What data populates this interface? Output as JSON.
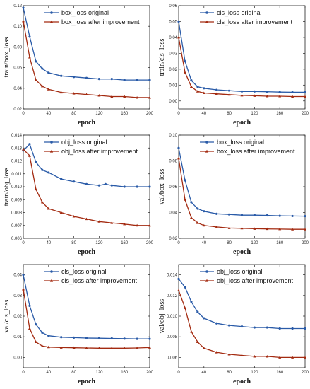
{
  "colors": {
    "original": "#2a5ba8",
    "improved": "#a32a10"
  },
  "chart_data": [
    {
      "type": "line",
      "ylabel": "train/box_loss",
      "xlabel": "epoch",
      "xlim": [
        0,
        200
      ],
      "ylim": [
        0.02,
        0.12
      ],
      "xticks": [
        "0",
        "40",
        "80",
        "120",
        "160",
        "200"
      ],
      "yticks": [
        "0.02",
        "0.04",
        "0.06",
        "0.08",
        "0.10",
        "0.12"
      ],
      "series": [
        {
          "name": "box_loss original",
          "key": "original",
          "x": [
            0,
            10,
            20,
            30,
            40,
            60,
            80,
            100,
            120,
            140,
            160,
            180,
            200
          ],
          "y": [
            0.118,
            0.09,
            0.066,
            0.059,
            0.055,
            0.052,
            0.051,
            0.05,
            0.049,
            0.049,
            0.048,
            0.048,
            0.048
          ]
        },
        {
          "name": "box_loss after improvement",
          "key": "improved",
          "x": [
            0,
            10,
            20,
            30,
            40,
            60,
            80,
            100,
            120,
            140,
            160,
            180,
            200
          ],
          "y": [
            0.105,
            0.07,
            0.048,
            0.042,
            0.039,
            0.036,
            0.035,
            0.034,
            0.033,
            0.032,
            0.032,
            0.031,
            0.031
          ]
        }
      ]
    },
    {
      "type": "line",
      "ylabel": "train/cls_loss",
      "xlabel": "epoch",
      "xlim": [
        0,
        200
      ],
      "ylim": [
        -0.005,
        0.06
      ],
      "xticks": [
        "0",
        "40",
        "80",
        "120",
        "160",
        "200"
      ],
      "yticks": [
        "0.00",
        "0.01",
        "0.02",
        "0.03",
        "0.04",
        "0.05",
        "0.06"
      ],
      "series": [
        {
          "name": "cls_loss original",
          "key": "original",
          "x": [
            0,
            10,
            20,
            30,
            40,
            60,
            80,
            100,
            120,
            140,
            160,
            180,
            200
          ],
          "y": [
            0.05,
            0.025,
            0.013,
            0.009,
            0.008,
            0.007,
            0.0065,
            0.006,
            0.006,
            0.0058,
            0.0056,
            0.0055,
            0.0055
          ]
        },
        {
          "name": "cls_loss after improvement",
          "key": "improved",
          "x": [
            0,
            10,
            20,
            30,
            40,
            60,
            80,
            100,
            120,
            140,
            160,
            180,
            200
          ],
          "y": [
            0.04,
            0.018,
            0.009,
            0.006,
            0.005,
            0.0045,
            0.004,
            0.0035,
            0.0033,
            0.003,
            0.003,
            0.0028,
            0.0028
          ]
        }
      ]
    },
    {
      "type": "line",
      "ylabel": "train/obj_loss",
      "xlabel": "epoch",
      "xlim": [
        0,
        200
      ],
      "ylim": [
        0.006,
        0.014
      ],
      "xticks": [
        "0",
        "40",
        "80",
        "120",
        "160",
        "200"
      ],
      "yticks": [
        "0.006",
        "0.007",
        "0.008",
        "0.009",
        "0.010",
        "0.011",
        "0.012",
        "0.013",
        "0.014"
      ],
      "series": [
        {
          "name": "obj_loss original",
          "key": "original",
          "x": [
            0,
            10,
            20,
            30,
            40,
            60,
            80,
            100,
            120,
            130,
            140,
            160,
            180,
            200
          ],
          "y": [
            0.0128,
            0.0133,
            0.0119,
            0.0113,
            0.0111,
            0.0106,
            0.0104,
            0.0102,
            0.0101,
            0.0102,
            0.0101,
            0.01,
            0.01,
            0.01
          ]
        },
        {
          "name": "obj_loss after improvement",
          "key": "improved",
          "x": [
            0,
            10,
            20,
            30,
            40,
            60,
            80,
            100,
            120,
            140,
            160,
            180,
            200
          ],
          "y": [
            0.0129,
            0.0124,
            0.0098,
            0.0088,
            0.0083,
            0.008,
            0.0077,
            0.0075,
            0.0073,
            0.0072,
            0.0071,
            0.007,
            0.007
          ]
        }
      ]
    },
    {
      "type": "line",
      "ylabel": "val/box_loss",
      "xlabel": "epoch",
      "xlim": [
        0,
        200
      ],
      "ylim": [
        0.02,
        0.1
      ],
      "xticks": [
        "0",
        "40",
        "80",
        "120",
        "160",
        "200"
      ],
      "yticks": [
        "0.02",
        "0.04",
        "0.06",
        "0.08",
        "0.10"
      ],
      "series": [
        {
          "name": "box_loss original",
          "key": "original",
          "x": [
            0,
            10,
            20,
            30,
            40,
            60,
            80,
            100,
            120,
            140,
            160,
            180,
            200
          ],
          "y": [
            0.09,
            0.065,
            0.048,
            0.043,
            0.041,
            0.039,
            0.0385,
            0.038,
            0.038,
            0.0378,
            0.0375,
            0.0373,
            0.0372
          ]
        },
        {
          "name": "box_loss after improvement",
          "key": "improved",
          "x": [
            0,
            10,
            20,
            30,
            40,
            60,
            80,
            100,
            120,
            140,
            160,
            180,
            200
          ],
          "y": [
            0.082,
            0.05,
            0.036,
            0.032,
            0.03,
            0.0288,
            0.028,
            0.0278,
            0.0275,
            0.0273,
            0.0272,
            0.027,
            0.027
          ]
        }
      ]
    },
    {
      "type": "line",
      "ylabel": "val/cls_loss",
      "xlabel": "epoch",
      "xlim": [
        0,
        200
      ],
      "ylim": [
        -0.005,
        0.045
      ],
      "xticks": [
        "0",
        "40",
        "80",
        "120",
        "160",
        "200"
      ],
      "yticks": [
        "0.00",
        "0.01",
        "0.02",
        "0.03",
        "0.04"
      ],
      "series": [
        {
          "name": "cls_loss original",
          "key": "original",
          "x": [
            0,
            10,
            20,
            30,
            40,
            60,
            80,
            100,
            120,
            140,
            160,
            180,
            200
          ],
          "y": [
            0.04,
            0.025,
            0.016,
            0.012,
            0.0105,
            0.0098,
            0.0096,
            0.0094,
            0.0093,
            0.0092,
            0.0091,
            0.009,
            0.009
          ]
        },
        {
          "name": "cls_loss after improvement",
          "key": "improved",
          "x": [
            0,
            10,
            20,
            30,
            40,
            60,
            80,
            100,
            120,
            140,
            160,
            180,
            200
          ],
          "y": [
            0.033,
            0.014,
            0.0075,
            0.0055,
            0.005,
            0.0048,
            0.0047,
            0.0046,
            0.0045,
            0.0045,
            0.0045,
            0.0046,
            0.0048
          ]
        }
      ]
    },
    {
      "type": "line",
      "ylabel": "val/obj_loss",
      "xlabel": "epoch",
      "xlim": [
        0,
        200
      ],
      "ylim": [
        0.005,
        0.015
      ],
      "xticks": [
        "0",
        "40",
        "80",
        "120",
        "160",
        "200"
      ],
      "yticks": [
        "0.006",
        "0.008",
        "0.010",
        "0.012",
        "0.014"
      ],
      "series": [
        {
          "name": "obj_loss original",
          "key": "original",
          "x": [
            0,
            10,
            20,
            30,
            40,
            60,
            80,
            100,
            120,
            140,
            160,
            180,
            200
          ],
          "y": [
            0.0136,
            0.0128,
            0.0114,
            0.0104,
            0.0098,
            0.0093,
            0.0091,
            0.009,
            0.0089,
            0.0089,
            0.0088,
            0.0088,
            0.0088
          ]
        },
        {
          "name": "obj_loss after improvement",
          "key": "improved",
          "x": [
            0,
            10,
            20,
            30,
            40,
            60,
            80,
            100,
            120,
            140,
            160,
            180,
            200
          ],
          "y": [
            0.0125,
            0.0108,
            0.0085,
            0.0075,
            0.0069,
            0.0065,
            0.0063,
            0.0062,
            0.0061,
            0.0061,
            0.006,
            0.006,
            0.006
          ]
        }
      ]
    }
  ]
}
